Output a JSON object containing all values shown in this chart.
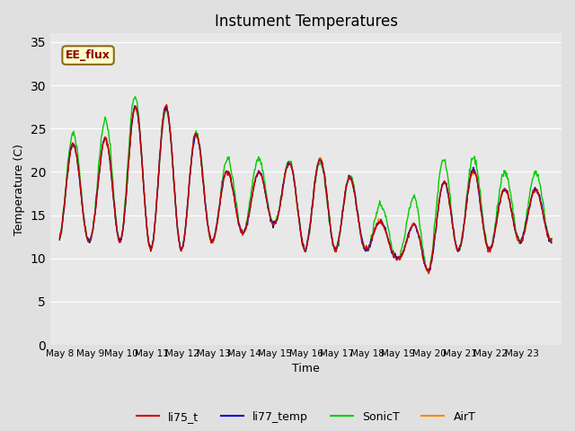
{
  "title": "Instument Temperatures",
  "xlabel": "Time",
  "ylabel": "Temperature (C)",
  "ylim": [
    0,
    36
  ],
  "yticks": [
    0,
    5,
    10,
    15,
    20,
    25,
    30,
    35
  ],
  "bg_color": "#e0e0e0",
  "plot_bg_color": "#e8e8e8",
  "grid_color": "white",
  "annotation_text": "EE_flux",
  "annotation_color": "#8b0000",
  "annotation_bg": "#ffffcc",
  "annotation_edge": "#8b6914",
  "series_colors": {
    "li75_t": "#cc0000",
    "li77_temp": "#0000cc",
    "SonicT": "#00cc00",
    "AirT": "#ff8800"
  },
  "x_tick_labels": [
    "May 8",
    "May 9",
    "May 10",
    "May 11",
    "May 12",
    "May 13",
    "May 14",
    "May 15",
    "May 16",
    "May 17",
    "May 18",
    "May 19",
    "May 20",
    "May 21",
    "May 22",
    "May 23"
  ],
  "legend_entries": [
    "li75_t",
    "li77_temp",
    "SonicT",
    "AirT"
  ],
  "day_peaks_base": [
    25,
    21,
    27,
    28,
    27,
    21,
    19,
    21,
    21,
    22,
    16,
    12,
    16,
    22,
    18,
    18
  ],
  "day_mins_base": [
    12,
    12,
    12,
    11,
    11,
    12,
    13,
    14,
    11,
    11,
    11,
    10,
    8.5,
    11,
    11,
    12
  ],
  "sonic_peaks": [
    26,
    22.5,
    30,
    27,
    27,
    21.5,
    21.5,
    21.5,
    21,
    21,
    17.5,
    14.5,
    20,
    23,
    20,
    20
  ]
}
